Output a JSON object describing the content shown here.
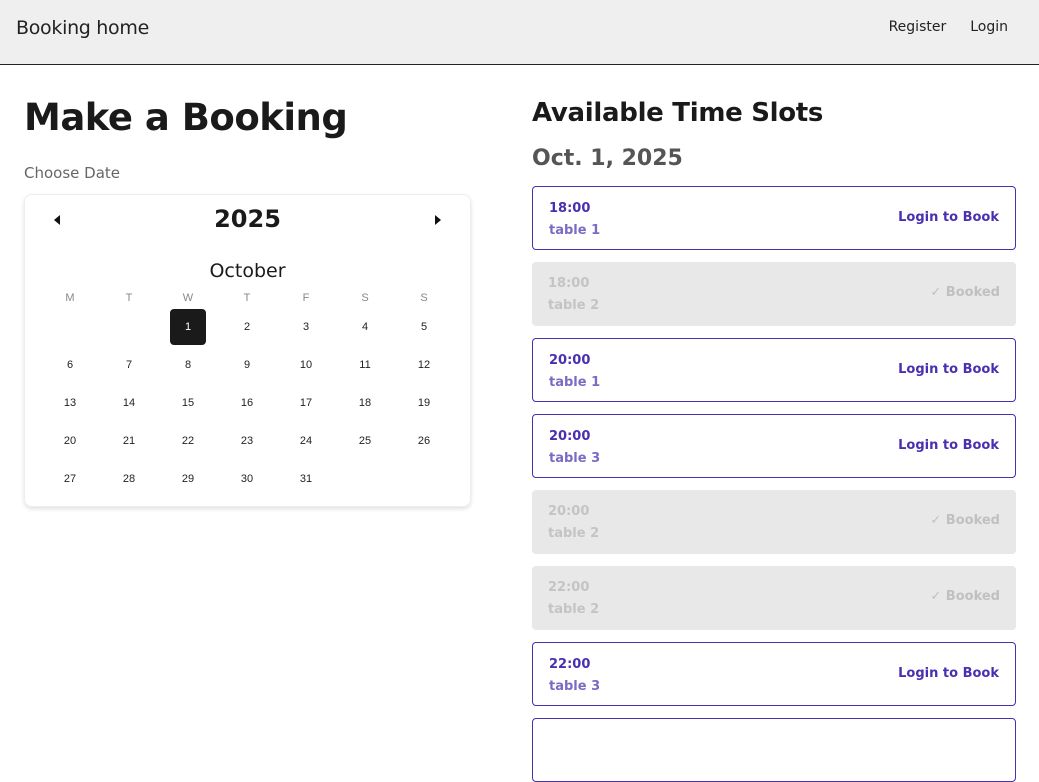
{
  "nav": {
    "brand": "Booking home",
    "links": [
      "Register",
      "Login"
    ]
  },
  "booking": {
    "title": "Make a Booking",
    "choose_label": "Choose Date"
  },
  "calendar": {
    "year": "2025",
    "month": "October",
    "weekdays": [
      "M",
      "T",
      "W",
      "T",
      "F",
      "S",
      "S"
    ],
    "first_weekday_index": 2,
    "days_in_month": 31,
    "selected_day": 1
  },
  "slots_panel": {
    "title": "Available Time Slots",
    "date": "Oct. 1, 2025",
    "check_icon": "✓",
    "slots": [
      {
        "time": "18:00",
        "table": "table 1",
        "status": "open",
        "action": "Login to Book"
      },
      {
        "time": "18:00",
        "table": "table 2",
        "status": "booked",
        "action": "Booked"
      },
      {
        "time": "20:00",
        "table": "table 1",
        "status": "open",
        "action": "Login to Book"
      },
      {
        "time": "20:00",
        "table": "table 3",
        "status": "open",
        "action": "Login to Book"
      },
      {
        "time": "20:00",
        "table": "table 2",
        "status": "booked",
        "action": "Booked"
      },
      {
        "time": "22:00",
        "table": "table 2",
        "status": "booked",
        "action": "Booked"
      },
      {
        "time": "22:00",
        "table": "table 3",
        "status": "open",
        "action": "Login to Book"
      },
      {
        "status": "open"
      }
    ]
  },
  "colors": {
    "accent": "#4a2fb0",
    "booked_bg": "#e8e8e8",
    "nav_bg": "#efefef"
  }
}
